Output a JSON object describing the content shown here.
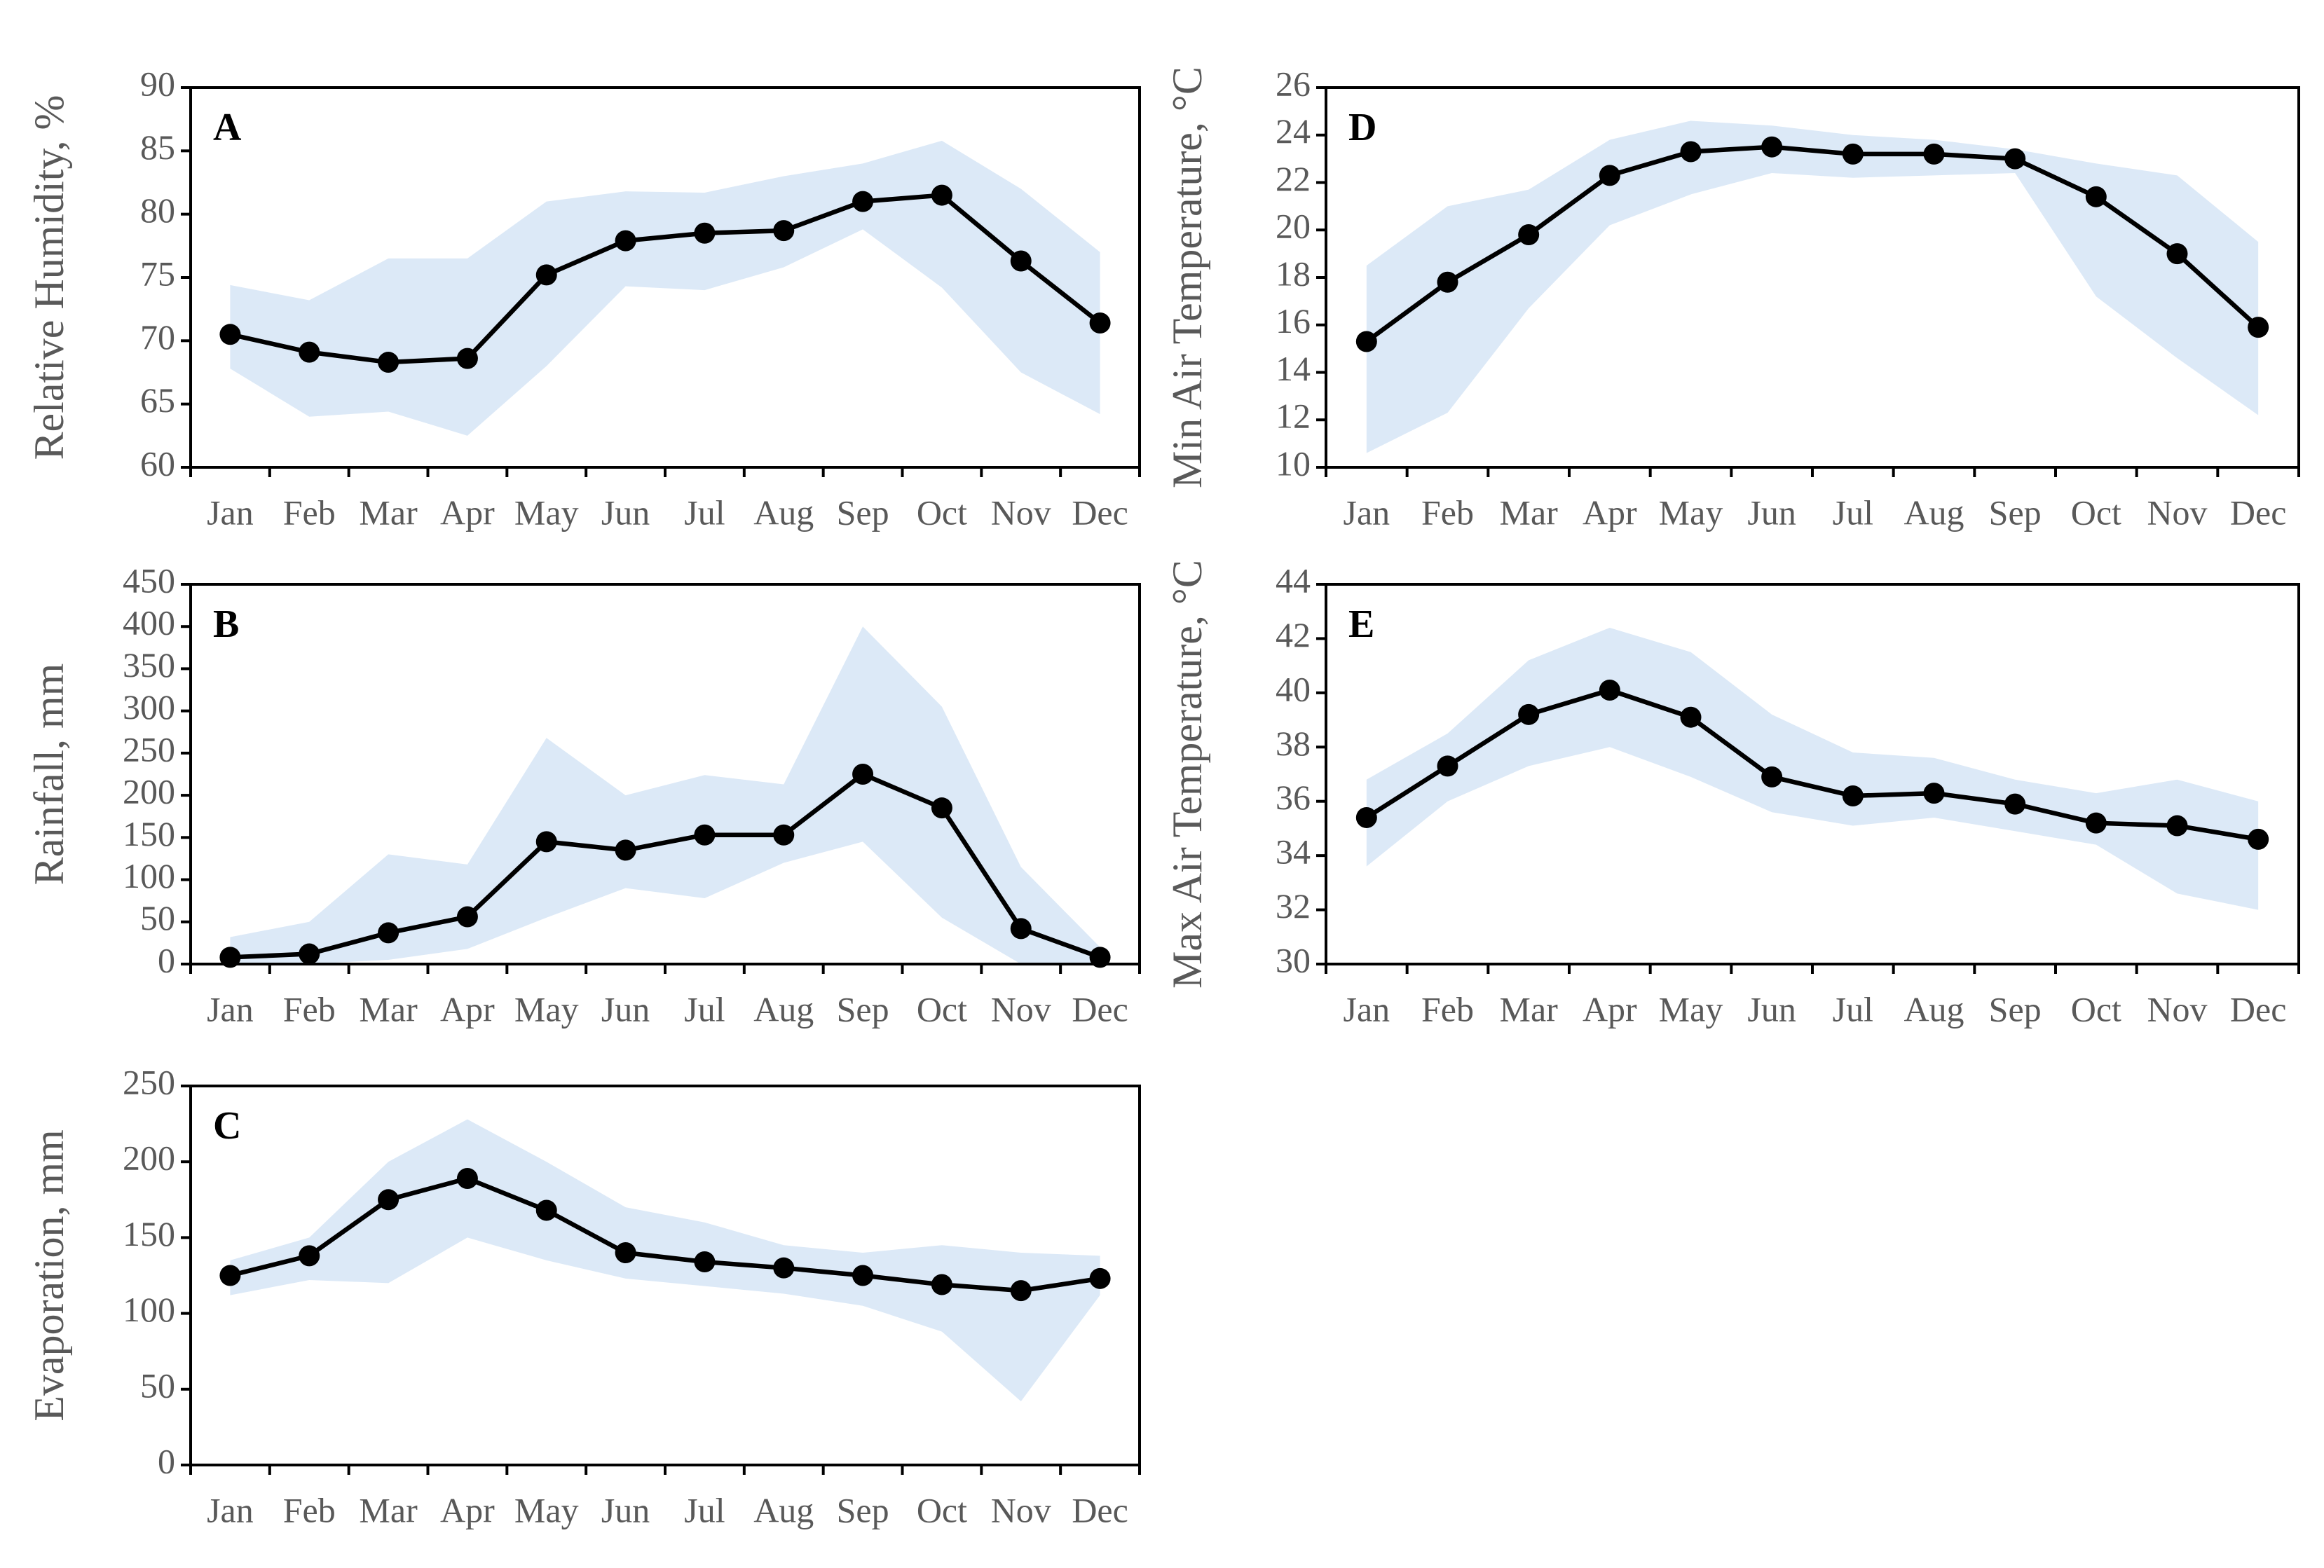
{
  "chart_data": [
    {
      "type": "line",
      "label": "A",
      "ylabel": "Relative Humidity, %",
      "categories": [
        "Jan",
        "Feb",
        "Mar",
        "Apr",
        "May",
        "Jun",
        "Jul",
        "Aug",
        "Sep",
        "Oct",
        "Nov",
        "Dec"
      ],
      "series": [
        {
          "color": "#000000",
          "values": [
            70.5,
            69.1,
            68.3,
            68.6,
            75.2,
            77.9,
            78.5,
            78.7,
            81.0,
            81.5,
            76.3,
            71.4
          ]
        }
      ],
      "range": {
        "color": "#dce9f7",
        "low": [
          67.8,
          64.0,
          64.4,
          62.5,
          68.0,
          74.3,
          74.0,
          75.8,
          78.8,
          74.2,
          67.5,
          64.2
        ],
        "high": [
          74.4,
          73.2,
          76.5,
          76.5,
          81.0,
          81.8,
          81.7,
          83.0,
          84.0,
          85.8,
          82.0,
          77.0
        ]
      },
      "ylim": [
        60,
        90
      ],
      "yticks": [
        60,
        65,
        70,
        75,
        80,
        85,
        90
      ]
    },
    {
      "type": "line",
      "label": "B",
      "ylabel": "Rainfall, mm",
      "categories": [
        "Jan",
        "Feb",
        "Mar",
        "Apr",
        "May",
        "Jun",
        "Jul",
        "Aug",
        "Sep",
        "Oct",
        "Nov",
        "Dec"
      ],
      "series": [
        {
          "color": "#000000",
          "values": [
            8,
            12,
            37,
            56,
            145,
            135,
            153,
            153,
            225,
            185,
            42,
            8
          ]
        }
      ],
      "range": {
        "color": "#dce9f7",
        "low": [
          0,
          0,
          5,
          18,
          55,
          90,
          78,
          120,
          145,
          55,
          0,
          0
        ],
        "high": [
          32,
          50,
          130,
          118,
          268,
          200,
          224,
          213,
          400,
          305,
          115,
          20
        ]
      },
      "ylim": [
        0,
        450
      ],
      "yticks": [
        0,
        50,
        100,
        150,
        200,
        250,
        300,
        350,
        400,
        450
      ]
    },
    {
      "type": "line",
      "label": "C",
      "ylabel": "Evaporation, mm",
      "categories": [
        "Jan",
        "Feb",
        "Mar",
        "Apr",
        "May",
        "Jun",
        "Jul",
        "Aug",
        "Sep",
        "Oct",
        "Nov",
        "Dec"
      ],
      "series": [
        {
          "color": "#000000",
          "values": [
            125,
            138,
            175,
            189,
            168,
            140,
            134,
            130,
            125,
            119,
            115,
            123
          ]
        }
      ],
      "range": {
        "color": "#dce9f7",
        "low": [
          112,
          122,
          120,
          150,
          135,
          123,
          118,
          113,
          105,
          88,
          42,
          112
        ],
        "high": [
          135,
          150,
          200,
          228,
          200,
          170,
          160,
          145,
          140,
          145,
          140,
          138
        ]
      },
      "ylim": [
        0,
        250
      ],
      "yticks": [
        0,
        50,
        100,
        150,
        200,
        250
      ]
    },
    {
      "type": "line",
      "label": "D",
      "ylabel": "Min Air Temperature, °C",
      "categories": [
        "Jan",
        "Feb",
        "Mar",
        "Apr",
        "May",
        "Jun",
        "Jul",
        "Aug",
        "Sep",
        "Oct",
        "Nov",
        "Dec"
      ],
      "series": [
        {
          "color": "#000000",
          "values": [
            15.3,
            17.8,
            19.8,
            22.3,
            23.3,
            23.5,
            23.2,
            23.2,
            23.0,
            21.4,
            19.0,
            15.9
          ]
        }
      ],
      "range": {
        "color": "#dce9f7",
        "low": [
          10.6,
          12.3,
          16.7,
          20.2,
          21.5,
          22.4,
          22.2,
          22.3,
          22.4,
          17.2,
          14.6,
          12.2
        ],
        "high": [
          18.5,
          21.0,
          21.7,
          23.8,
          24.6,
          24.4,
          24.0,
          23.8,
          23.4,
          22.8,
          22.3,
          19.5
        ]
      },
      "ylim": [
        10,
        26
      ],
      "yticks": [
        10,
        12,
        14,
        16,
        18,
        20,
        22,
        24,
        26
      ]
    },
    {
      "type": "line",
      "label": "E",
      "ylabel": "Max Air Temperature, °C",
      "categories": [
        "Jan",
        "Feb",
        "Mar",
        "Apr",
        "May",
        "Jun",
        "Jul",
        "Aug",
        "Sep",
        "Oct",
        "Nov",
        "Dec"
      ],
      "series": [
        {
          "color": "#000000",
          "values": [
            35.4,
            37.3,
            39.2,
            40.1,
            39.1,
            36.9,
            36.2,
            36.3,
            35.9,
            35.2,
            35.1,
            34.6
          ]
        }
      ],
      "range": {
        "color": "#dce9f7",
        "low": [
          33.6,
          36.0,
          37.3,
          38.0,
          36.9,
          35.6,
          35.1,
          35.4,
          34.9,
          34.4,
          32.6,
          32.0
        ],
        "high": [
          36.8,
          38.5,
          41.2,
          42.4,
          41.5,
          39.2,
          37.8,
          37.6,
          36.8,
          36.3,
          36.8,
          36.0
        ]
      },
      "ylim": [
        30,
        44
      ],
      "yticks": [
        30,
        32,
        34,
        36,
        38,
        40,
        42,
        44
      ]
    }
  ]
}
